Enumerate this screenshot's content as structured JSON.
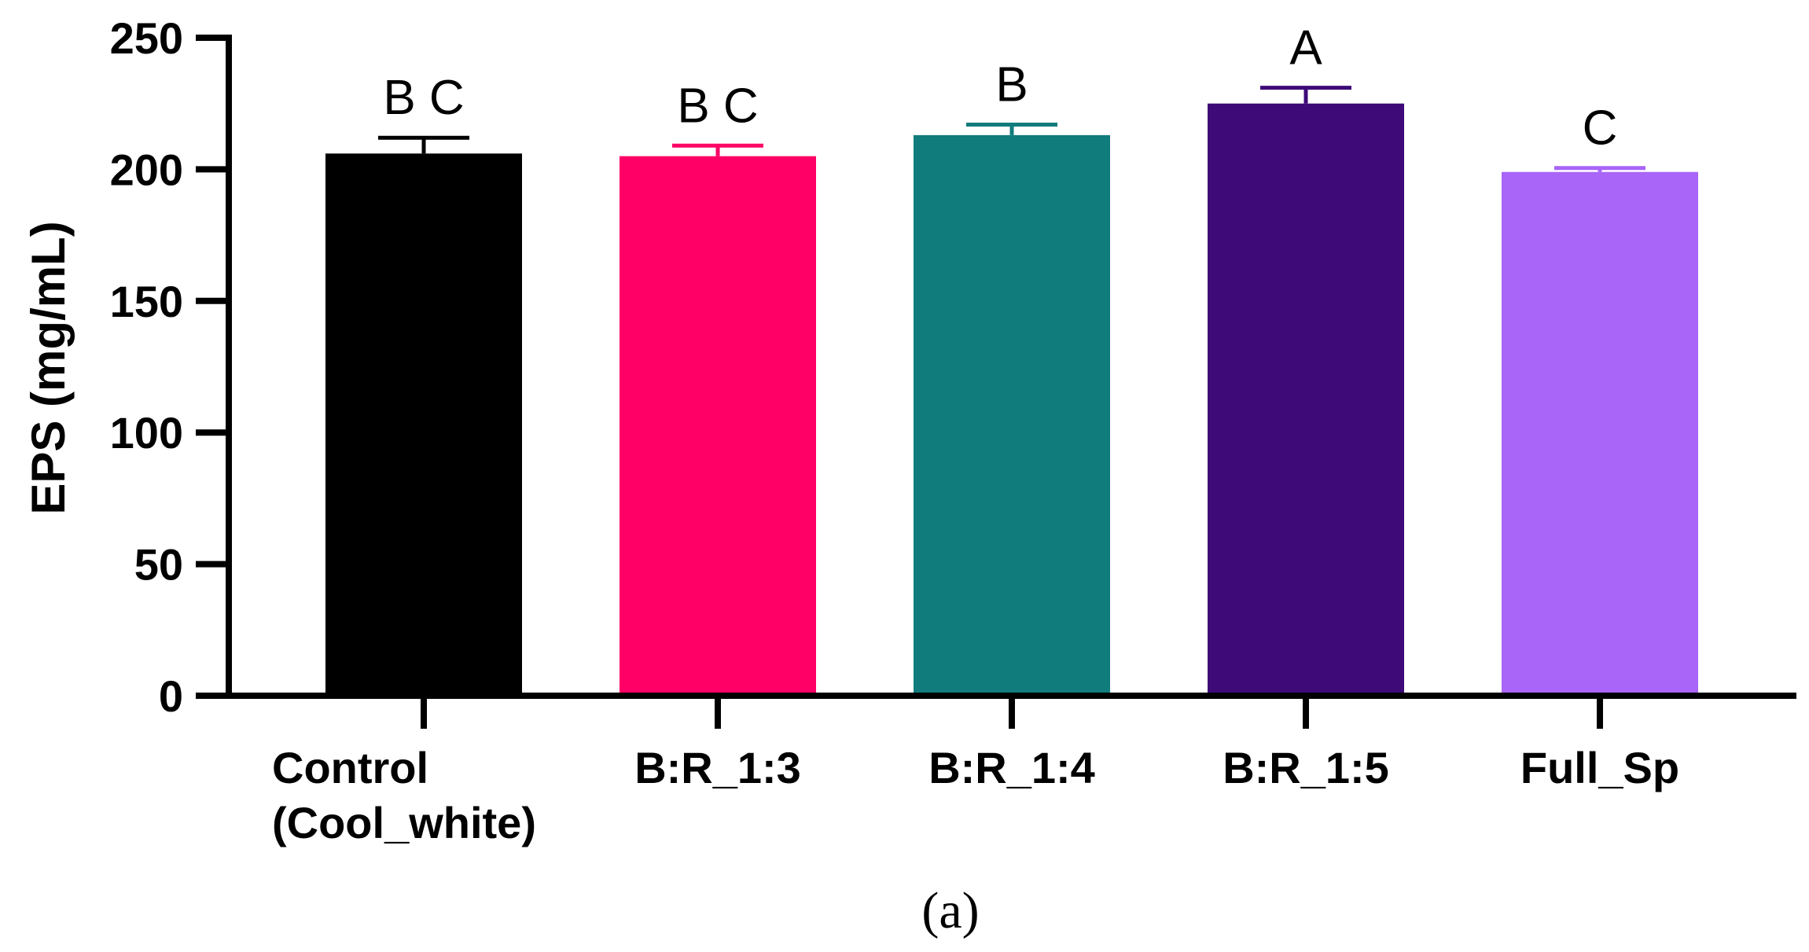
{
  "chart_data": {
    "type": "bar",
    "title": "",
    "xlabel": "",
    "ylabel": "EPS (mg/mL)",
    "ylim": [
      0,
      250
    ],
    "yticks": [
      0,
      50,
      100,
      150,
      200,
      250
    ],
    "grid": false,
    "legend": "none",
    "categories": [
      [
        "Control",
        "(Cool_white)"
      ],
      [
        "B:R_1:3"
      ],
      [
        "B:R_1:4"
      ],
      [
        "B:R_1:5"
      ],
      [
        "Full_Sp"
      ]
    ],
    "values": [
      206,
      205,
      213,
      225,
      199
    ],
    "errors": [
      6,
      4,
      4,
      6,
      1.5
    ],
    "significance_letters": [
      "B C",
      "B C",
      "B",
      "A",
      "C"
    ],
    "colors": [
      "#000000",
      "#ff0066",
      "#117c7c",
      "#3d0a78",
      "#a865f8"
    ]
  },
  "caption": "(a)"
}
